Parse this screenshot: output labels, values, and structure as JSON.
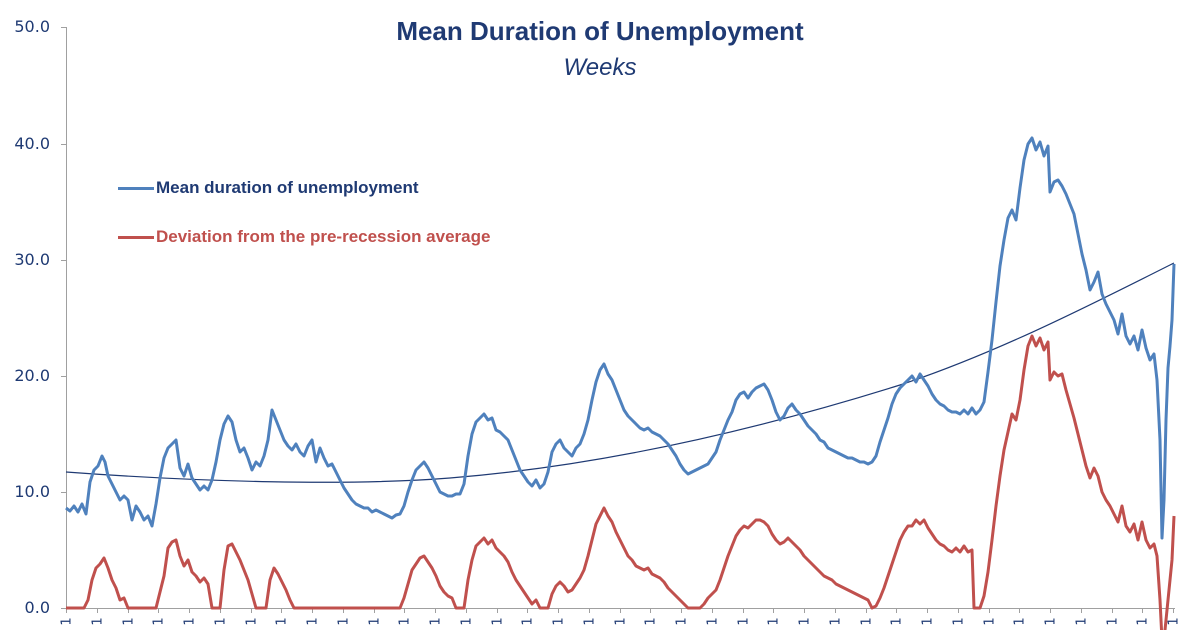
{
  "chart_data": {
    "type": "line",
    "title": "Mean Duration of Unemployment",
    "subtitle": "Weeks",
    "xlabel": "",
    "ylabel": "",
    "ylim": [
      0,
      50
    ],
    "yticks": [
      "0.0",
      "10.0",
      "20.0",
      "30.0",
      "40.0",
      "50.0"
    ],
    "xtick_label": "1",
    "xtick_count": 37,
    "grid": false,
    "legend_position": "upper-left inside",
    "legend": [
      {
        "label": "Mean duration of unemployment",
        "color": "#4f81bd"
      },
      {
        "label": "Deviation from the pre-recession average",
        "color": "#c0504d"
      }
    ],
    "trendline": {
      "type": "polynomial",
      "color": "#1f3a73",
      "start": 11.7,
      "min": 11.0,
      "end": 29.6
    },
    "series": [
      {
        "name": "Mean duration of unemployment",
        "color": "#4f81bd",
        "x_index": [
          0,
          1,
          2,
          3,
          4,
          5,
          6,
          7,
          8,
          9,
          10,
          11,
          12,
          13,
          14,
          15,
          16,
          17,
          18,
          19,
          20,
          21,
          22,
          23,
          24,
          25,
          26,
          27,
          28,
          29,
          30,
          31,
          32,
          33,
          34,
          35,
          36
        ],
        "values": [
          8.6,
          12.5,
          8.5,
          13.8,
          11.0,
          16.0,
          13.5,
          16.5,
          13.0,
          11.0,
          8.5,
          8.0,
          12.0,
          9.8,
          16.5,
          11.5,
          11.0,
          14.0,
          20.5,
          15.0,
          14.5,
          11.8,
          12.5,
          18.5,
          19.0,
          16.5,
          14.0,
          12.5,
          19.5,
          20.0,
          17.0,
          17.5,
          34.0,
          40.5,
          36.5,
          26.0,
          22.5
        ],
        "end_values": {
          "dip": 6.0,
          "final": 29.6
        }
      },
      {
        "name": "Deviation from the pre-recession average",
        "color": "#c0504d",
        "x_index": [
          0,
          1,
          2,
          3,
          4,
          5,
          6,
          7,
          8,
          9,
          10,
          11,
          12,
          13,
          14,
          15,
          16,
          17,
          18,
          19,
          20,
          21,
          22,
          23,
          24,
          25,
          26,
          27,
          28,
          29,
          30,
          31,
          32,
          33,
          34,
          35,
          36
        ],
        "values": [
          0.0,
          4.0,
          0.0,
          5.5,
          3.0,
          5.5,
          0.0,
          3.0,
          0.0,
          0.0,
          0.0,
          0.0,
          4.0,
          0.0,
          6.0,
          1.5,
          0.0,
          2.5,
          8.5,
          3.5,
          2.5,
          0.0,
          1.5,
          6.5,
          7.0,
          5.0,
          2.0,
          0.0,
          6.5,
          7.0,
          4.0,
          0.0,
          17.5,
          23.5,
          19.5,
          9.0,
          5.0
        ],
        "end_values": {
          "dip": -1.0,
          "final": 7.8
        }
      }
    ]
  }
}
